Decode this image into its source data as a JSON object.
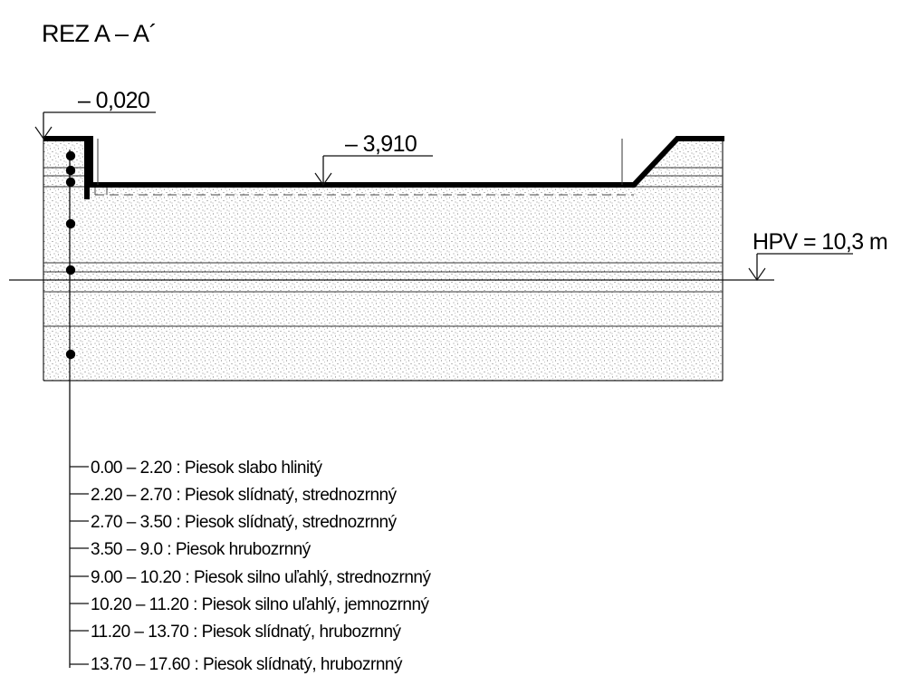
{
  "section": {
    "title": "REZ A – A´"
  },
  "levels": {
    "top": "– 0,020",
    "excavation": "– 3,910",
    "groundwater": "HPV = 10,3 m"
  },
  "legend": [
    {
      "text": "0.00 – 2.20 : Piesok slabo hlinitý"
    },
    {
      "text": "2.20 – 2.70 : Piesok slídnatý, strednozrnný"
    },
    {
      "text": "2.70 – 3.50 : Piesok slídnatý, strednozrnný"
    },
    {
      "text": "3.50 – 9.0 : Piesok hrubozrnný"
    },
    {
      "text": "9.00 – 10.20 : Piesok silno uľahlý, strednozrnný"
    },
    {
      "text": "10.20 – 11.20 : Piesok silno uľahlý, jemnozrnný"
    },
    {
      "text": "11.20 – 13.70 : Piesok slídnatý, hrubozrnný"
    },
    {
      "text": "13.70 – 17.60 : Piesok slídnatý, hrubozrnný"
    }
  ]
}
